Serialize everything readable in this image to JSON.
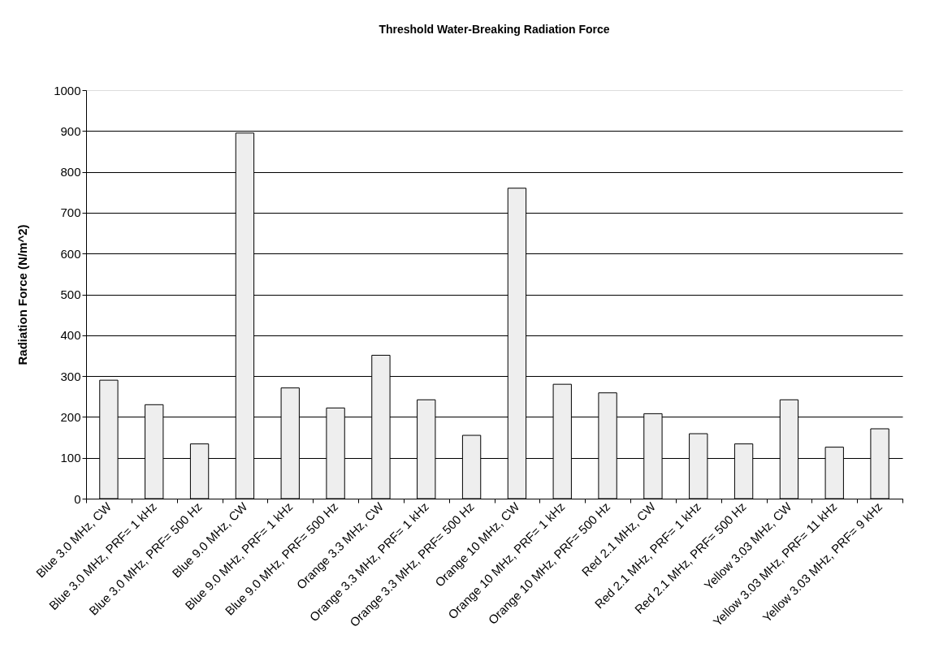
{
  "chart_data": {
    "type": "bar",
    "title": "Threshold Water-Breaking Radiation Force",
    "ylabel": "Radiation Force (N/m^2)",
    "categories": [
      "Blue 3.0 MHz, CW",
      "Blue 3.0 MHz, PRF= 1 kHz",
      "Blue 3.0 MHz, PRF= 500 Hz",
      "Blue 9.0 MHz, CW",
      "Blue 9.0 MHz, PRF= 1 kHz",
      "Blue 9.0 MHz, PRF= 500 Hz",
      "Orange 3.3 MHz, CW",
      "Orange 3.3 MHz, PRF= 1 kHz",
      "Orange 3.3 MHz, PRF= 500 Hz",
      "Orange 10 MHz, CW",
      "Orange 10 MHz, PRF= 1 kHz",
      "Orange 10 MHz, PRF= 500 Hz",
      "Red 2.1 MHz, CW",
      "Red 2.1 MHz, PRF= 1 kHz",
      "Red 2.1 MHz, PRF= 500 Hz",
      "Yellow 3.03 MHz, CW",
      "Yellow 3.03 MHz, PRF= 11 kHz",
      "Yellow 3.03 MHz, PRF= 9 kHz"
    ],
    "values": [
      290,
      230,
      134,
      895,
      271,
      222,
      351,
      242,
      155,
      760,
      280,
      259,
      208,
      159,
      134,
      242,
      126,
      171
    ],
    "color": "#eeeeee",
    "ylim": [
      0,
      1000
    ],
    "yticks": [
      0,
      100,
      200,
      300,
      400,
      500,
      600,
      700,
      800,
      900,
      1000
    ],
    "grid": "y"
  }
}
